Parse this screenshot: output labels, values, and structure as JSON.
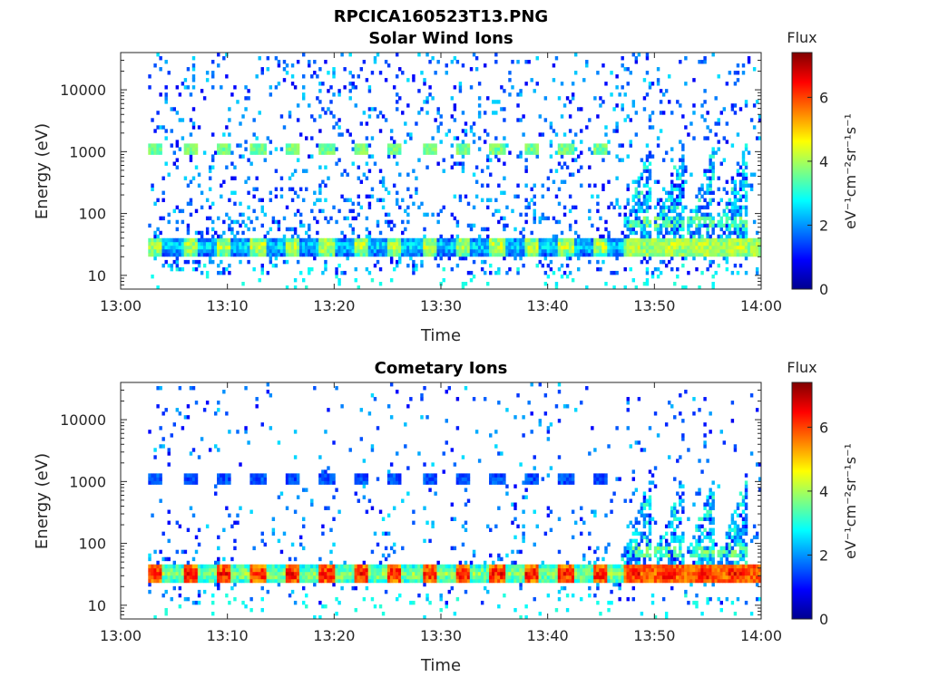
{
  "figure": {
    "filename": "RPCICA160523T13.PNG"
  },
  "chart_data": [
    {
      "type": "heatmap",
      "title": "Solar Wind Ions",
      "xlabel": "Time",
      "ylabel": "Energy (eV)",
      "y_scale": "log",
      "xlim": [
        "13:00",
        "14:00"
      ],
      "ylim": [
        6,
        40000
      ],
      "x_ticks": [
        "13:00",
        "13:10",
        "13:20",
        "13:30",
        "13:40",
        "13:50",
        "14:00"
      ],
      "y_ticks": [
        {
          "value": 10,
          "label": "10"
        },
        {
          "value": 100,
          "label": "100"
        },
        {
          "value": 1000,
          "label": "1000"
        },
        {
          "value": 10000,
          "label": "10000"
        }
      ],
      "colorbar": {
        "title": "Flux",
        "label": "eV⁻¹cm⁻²sr⁻¹s⁻¹",
        "ticks": [
          "0",
          "2",
          "4",
          "6"
        ],
        "range": [
          0,
          7.4
        ],
        "colormap": "jet"
      },
      "features": {
        "data_start_min": 2.5,
        "scan_period_min": 3.2,
        "high_band": {
          "energy_eV": 1000,
          "flux": 3.6
        },
        "low_band": {
          "energy_eV": 28,
          "flux": 4.3
        },
        "bursts_after_min": 47,
        "burst_times_min": [
          48,
          51,
          54,
          57
        ]
      }
    },
    {
      "type": "heatmap",
      "title": "Cometary Ions",
      "xlabel": "Time",
      "ylabel": "Energy (eV)",
      "y_scale": "log",
      "xlim": [
        "13:00",
        "14:00"
      ],
      "ylim": [
        6,
        40000
      ],
      "x_ticks": [
        "13:00",
        "13:10",
        "13:20",
        "13:30",
        "13:40",
        "13:50",
        "14:00"
      ],
      "y_ticks": [
        {
          "value": 10,
          "label": "10"
        },
        {
          "value": 100,
          "label": "100"
        },
        {
          "value": 1000,
          "label": "1000"
        },
        {
          "value": 10000,
          "label": "10000"
        }
      ],
      "colorbar": {
        "title": "Flux",
        "label": "eV⁻¹cm⁻²sr⁻¹s⁻¹",
        "ticks": [
          "0",
          "2",
          "4",
          "6"
        ],
        "range": [
          0,
          7.4
        ],
        "colormap": "jet"
      },
      "features": {
        "data_start_min": 2.5,
        "scan_period_min": 3.2,
        "high_band": {
          "energy_eV": 1000,
          "flux": 1.5
        },
        "low_band": {
          "energy_eV": 30,
          "flux": 6.4
        },
        "bursts_after_min": 47,
        "burst_times_min": [
          48,
          51,
          54,
          57
        ]
      }
    }
  ]
}
